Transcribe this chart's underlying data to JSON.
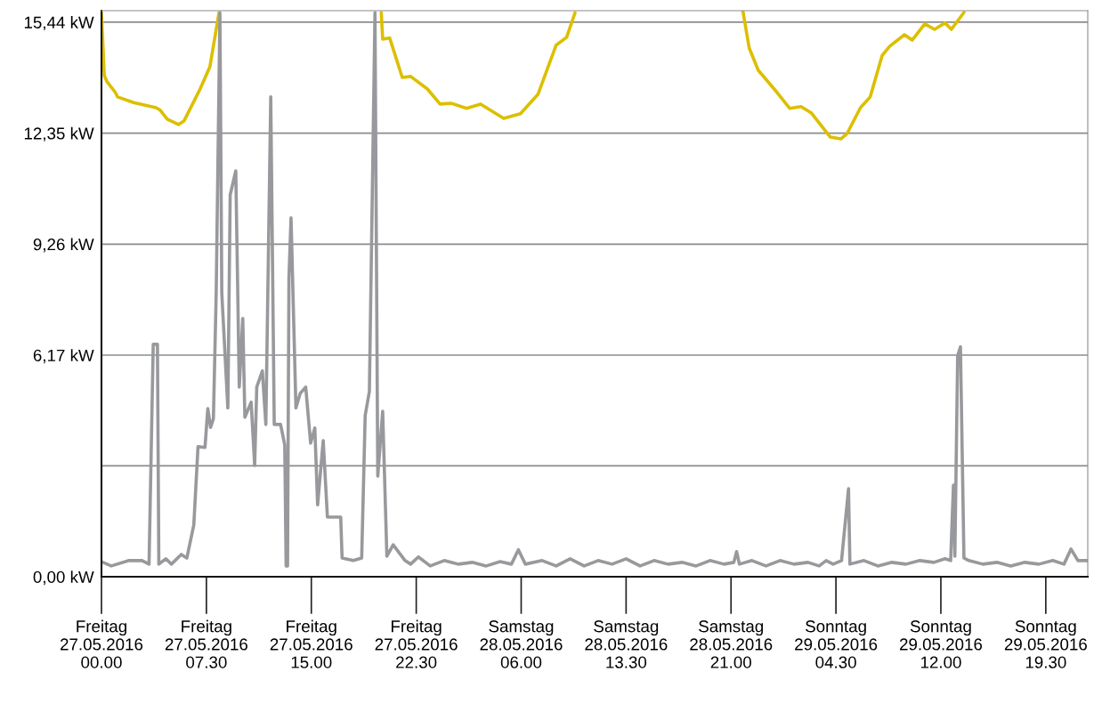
{
  "chart_data": {
    "type": "line",
    "xlim": [
      "2016-05-27T00:00",
      "2016-05-29T22:30"
    ],
    "xticks": [
      {
        "value": "2016-05-27T00:00",
        "label": "Freitag\n27.05.2016\n00.00"
      },
      {
        "value": "2016-05-27T07:30",
        "label": "Freitag\n27.05.2016\n07.30"
      },
      {
        "value": "2016-05-27T15:00",
        "label": "Freitag\n27.05.2016\n15.00"
      },
      {
        "value": "2016-05-27T22:30",
        "label": "Freitag\n27.05.2016\n22.30"
      },
      {
        "value": "2016-05-28T06:00",
        "label": "Samstag\n28.05.2016\n06.00"
      },
      {
        "value": "2016-05-28T13:30",
        "label": "Samstag\n28.05.2016\n13.30"
      },
      {
        "value": "2016-05-28T21:00",
        "label": "Samstag\n28.05.2016\n21.00"
      },
      {
        "value": "2016-05-29T04:30",
        "label": "Sonntag\n29.05.2016\n04.30"
      },
      {
        "value": "2016-05-29T12:00",
        "label": "Sonntag\n29.05.2016\n12.00"
      },
      {
        "value": "2016-05-29T19:30",
        "label": "Sonntag\n29.05.2016\n19.30"
      }
    ],
    "ylim": [
      0,
      15.76
    ],
    "yticks": [
      {
        "value": 0,
        "label": "0,00 kW"
      },
      {
        "value": 3.09,
        "label": null
      },
      {
        "value": 6.17,
        "label": "6,17 kW"
      },
      {
        "value": 9.26,
        "label": "9,26 kW"
      },
      {
        "value": 12.35,
        "label": "12,35 kW"
      },
      {
        "value": 15.44,
        "label": "15,44 kW"
      }
    ],
    "grid": "y",
    "marker": "none",
    "line_style": "solid",
    "series": [
      {
        "color": "#dcbf00",
        "x": [
          "2016-05-27T00:00",
          "2016-05-27T00:12",
          "2016-05-27T00:24",
          "2016-05-27T01:00",
          "2016-05-27T01:09",
          "2016-05-27T02:18",
          "2016-05-27T03:54",
          "2016-05-27T04:12",
          "2016-05-27T04:42",
          "2016-05-27T05:30",
          "2016-05-27T05:54",
          "2016-05-27T07:03",
          "2016-05-27T07:45",
          "2016-05-27T08:24",
          "2016-05-27T08:30",
          "2016-05-27T19:54",
          "2016-05-27T20:00",
          "2016-05-27T20:06",
          "2016-05-27T20:36",
          "2016-05-27T21:30",
          "2016-05-27T22:06",
          "2016-05-27T23:18",
          "2016-05-28T00:12",
          "2016-05-28T01:00",
          "2016-05-28T02:06",
          "2016-05-28T03:06",
          "2016-05-28T04:45",
          "2016-05-28T05:57",
          "2016-05-28T07:12",
          "2016-05-28T08:30",
          "2016-05-28T09:15",
          "2016-05-28T09:51",
          "2016-05-28T10:00",
          "2016-05-28T21:42",
          "2016-05-28T21:51",
          "2016-05-28T22:18",
          "2016-05-28T22:57",
          "2016-05-29T00:18",
          "2016-05-29T01:12",
          "2016-05-29T02:00",
          "2016-05-29T02:45",
          "2016-05-29T04:06",
          "2016-05-29T04:51",
          "2016-05-29T05:18",
          "2016-05-29T06:15",
          "2016-05-29T06:57",
          "2016-05-29T07:48",
          "2016-05-29T08:21",
          "2016-05-29T09:24",
          "2016-05-29T09:57",
          "2016-05-29T10:51",
          "2016-05-29T11:33",
          "2016-05-29T12:18",
          "2016-05-29T12:45",
          "2016-05-29T13:39"
        ],
        "values": [
          15.7,
          13.95,
          13.78,
          13.48,
          13.36,
          13.2,
          13.06,
          12.99,
          12.74,
          12.59,
          12.69,
          13.58,
          14.2,
          15.7,
          null,
          null,
          15.7,
          14.97,
          15.0,
          13.9,
          13.93,
          13.58,
          13.16,
          13.18,
          13.04,
          13.16,
          12.76,
          12.89,
          13.43,
          14.8,
          15.02,
          15.7,
          null,
          null,
          15.75,
          14.72,
          14.1,
          13.48,
          13.04,
          13.09,
          12.91,
          12.24,
          12.19,
          12.34,
          13.06,
          13.36,
          14.51,
          14.77,
          15.09,
          14.94,
          15.39,
          15.24,
          15.42,
          15.24,
          15.71
        ]
      },
      {
        "color": "#98999c",
        "x": [
          "2016-05-27T00:00",
          "2016-05-27T00:42",
          "2016-05-27T01:58",
          "2016-05-27T02:54",
          "2016-05-27T03:24",
          "2016-05-27T03:42",
          "2016-05-27T04:00",
          "2016-05-27T04:06",
          "2016-05-27T04:36",
          "2016-05-27T05:00",
          "2016-05-27T05:42",
          "2016-05-27T06:06",
          "2016-05-27T06:36",
          "2016-05-27T06:54",
          "2016-05-27T07:24",
          "2016-05-27T07:36",
          "2016-05-27T07:48",
          "2016-05-27T08:00",
          "2016-05-27T08:12",
          "2016-05-27T08:28",
          "2016-05-27T08:36",
          "2016-05-27T09:02",
          "2016-05-27T09:12",
          "2016-05-27T09:36",
          "2016-05-27T09:51",
          "2016-05-27T10:06",
          "2016-05-27T10:15",
          "2016-05-27T10:42",
          "2016-05-27T10:57",
          "2016-05-27T11:06",
          "2016-05-27T11:30",
          "2016-05-27T11:45",
          "2016-05-27T12:06",
          "2016-05-27T12:21",
          "2016-05-27T12:48",
          "2016-05-27T13:06",
          "2016-05-27T13:12",
          "2016-05-27T13:18",
          "2016-05-27T13:24",
          "2016-05-27T13:33",
          "2016-05-27T13:54",
          "2016-05-27T14:12",
          "2016-05-27T14:36",
          "2016-05-27T14:57",
          "2016-05-27T15:15",
          "2016-05-27T15:27",
          "2016-05-27T15:51",
          "2016-05-27T16:09",
          "2016-05-27T17:06",
          "2016-05-27T17:12",
          "2016-05-27T18:00",
          "2016-05-27T18:36",
          "2016-05-27T18:51",
          "2016-05-27T19:09",
          "2016-05-27T19:33",
          "2016-05-27T19:45",
          "2016-05-27T20:06",
          "2016-05-27T20:24",
          "2016-05-27T20:51",
          "2016-05-27T21:42",
          "2016-05-27T22:06",
          "2016-05-27T22:39",
          "2016-05-27T23:30",
          "2016-05-28T00:30",
          "2016-05-28T01:30",
          "2016-05-28T02:30",
          "2016-05-28T03:30",
          "2016-05-28T04:30",
          "2016-05-28T05:18",
          "2016-05-28T05:48",
          "2016-05-28T06:18",
          "2016-05-28T07:30",
          "2016-05-28T08:30",
          "2016-05-28T09:30",
          "2016-05-28T10:30",
          "2016-05-28T11:30",
          "2016-05-28T12:30",
          "2016-05-28T13:30",
          "2016-05-28T14:30",
          "2016-05-28T15:30",
          "2016-05-28T16:30",
          "2016-05-28T17:30",
          "2016-05-28T18:30",
          "2016-05-28T19:30",
          "2016-05-28T20:30",
          "2016-05-28T21:12",
          "2016-05-28T21:24",
          "2016-05-28T21:36",
          "2016-05-28T22:30",
          "2016-05-28T23:30",
          "2016-05-29T00:30",
          "2016-05-29T01:30",
          "2016-05-29T02:30",
          "2016-05-29T03:18",
          "2016-05-29T03:48",
          "2016-05-29T04:18",
          "2016-05-29T04:54",
          "2016-05-29T05:24",
          "2016-05-29T05:30",
          "2016-05-29T06:30",
          "2016-05-29T07:30",
          "2016-05-29T08:30",
          "2016-05-29T09:30",
          "2016-05-29T10:30",
          "2016-05-29T11:30",
          "2016-05-29T12:18",
          "2016-05-29T12:42",
          "2016-05-29T12:54",
          "2016-05-29T13:00",
          "2016-05-29T13:12",
          "2016-05-29T13:24",
          "2016-05-29T13:39",
          "2016-05-29T14:00",
          "2016-05-29T15:00",
          "2016-05-29T16:00",
          "2016-05-29T17:00",
          "2016-05-29T18:00",
          "2016-05-29T19:00",
          "2016-05-29T20:00",
          "2016-05-29T20:48",
          "2016-05-29T21:18",
          "2016-05-29T21:48",
          "2016-05-29T22:30"
        ],
        "values": [
          0.42,
          0.3,
          0.45,
          0.45,
          0.35,
          6.47,
          6.47,
          0.35,
          0.5,
          0.35,
          0.62,
          0.52,
          1.44,
          3.62,
          3.6,
          4.68,
          4.16,
          4.4,
          7.88,
          15.7,
          7.9,
          4.7,
          10.63,
          11.3,
          5.28,
          7.19,
          4.44,
          4.86,
          3.1,
          5.28,
          5.73,
          4.24,
          13.36,
          4.24,
          4.24,
          3.67,
          0.3,
          0.3,
          8.33,
          9.99,
          4.7,
          5.1,
          5.28,
          3.72,
          4.14,
          2.0,
          3.79,
          1.66,
          1.66,
          0.52,
          0.45,
          0.52,
          4.49,
          5.16,
          15.7,
          2.8,
          4.61,
          0.57,
          0.89,
          0.45,
          0.35,
          0.55,
          0.3,
          0.45,
          0.35,
          0.4,
          0.3,
          0.42,
          0.35,
          0.75,
          0.35,
          0.45,
          0.3,
          0.5,
          0.3,
          0.45,
          0.35,
          0.5,
          0.3,
          0.45,
          0.35,
          0.4,
          0.3,
          0.45,
          0.35,
          0.4,
          0.7,
          0.35,
          0.45,
          0.3,
          0.45,
          0.35,
          0.4,
          0.3,
          0.45,
          0.35,
          0.45,
          2.45,
          0.35,
          0.45,
          0.3,
          0.4,
          0.35,
          0.45,
          0.4,
          0.5,
          0.45,
          2.55,
          0.57,
          6.15,
          6.4,
          0.52,
          0.45,
          0.35,
          0.4,
          0.3,
          0.4,
          0.35,
          0.45,
          0.35,
          0.77,
          0.45,
          0.45
        ]
      }
    ]
  }
}
